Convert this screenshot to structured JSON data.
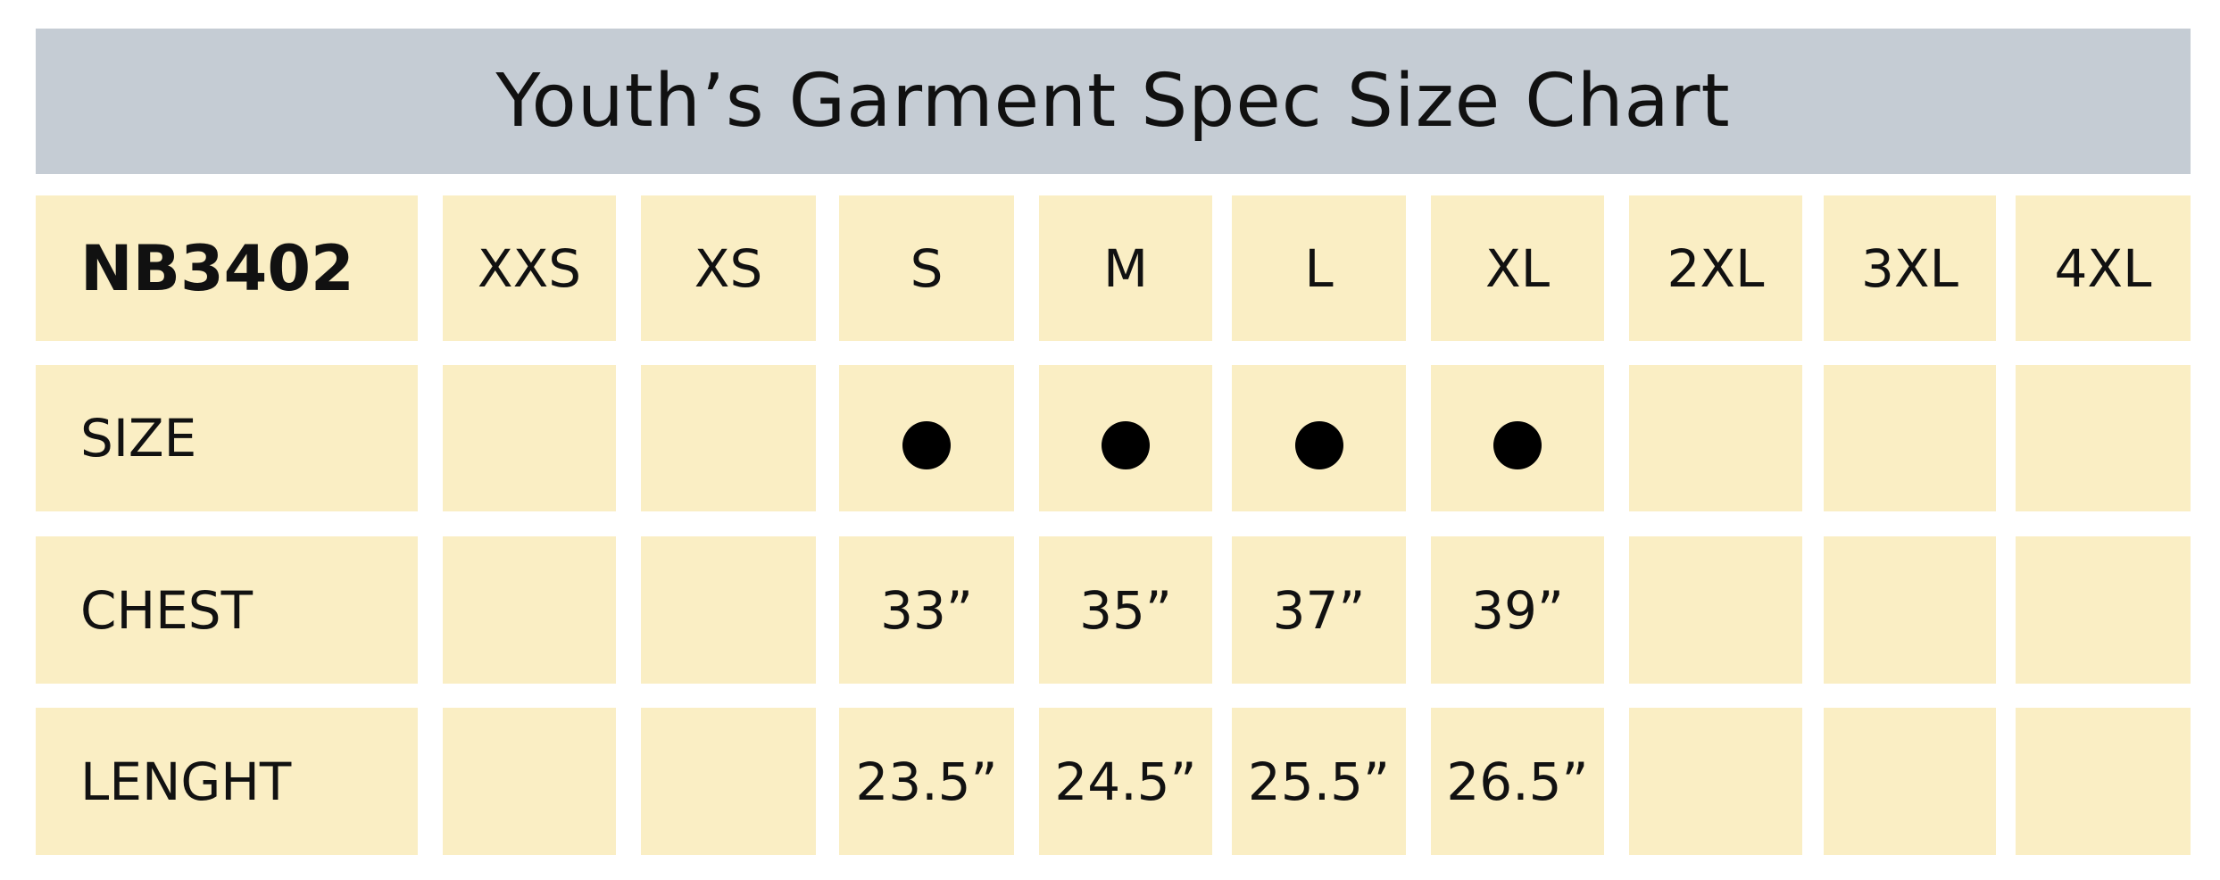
{
  "header": {
    "title": "Youth’s Garment Spec Size Chart"
  },
  "table": {
    "model": "NB3402",
    "sizes": [
      "XXS",
      "XS",
      "S",
      "M",
      "L",
      "XL",
      "2XL",
      "3XL",
      "4XL"
    ],
    "rows": [
      {
        "label": "SIZE",
        "available": [
          null,
          null,
          true,
          true,
          true,
          true,
          null,
          null,
          null
        ]
      },
      {
        "label": "CHEST",
        "cells": [
          null,
          null,
          "33”",
          "35”",
          "37”",
          "39”",
          null,
          null,
          null
        ]
      },
      {
        "label": "LENGHT",
        "cells": [
          null,
          null,
          "23.5”",
          "24.5”",
          "25.5”",
          "26.5”",
          null,
          null,
          null
        ]
      }
    ]
  }
}
